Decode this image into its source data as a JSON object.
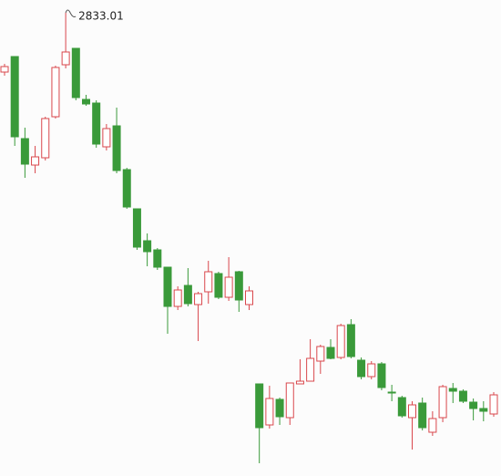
{
  "chart_data": {
    "type": "candlestick",
    "up_color": "#d9474c",
    "down_color": "#3a9a3a",
    "open": [
      2768,
      2785,
      2695,
      2666,
      2674,
      2719,
      2776,
      2794,
      2738,
      2734,
      2686,
      2709,
      2661,
      2618,
      2583,
      2573,
      2554,
      2511,
      2534,
      2513,
      2527,
      2547,
      2521,
      2549,
      2513,
      2426,
      2381,
      2409,
      2389,
      2426,
      2429,
      2451,
      2466,
      2455,
      2491,
      2452,
      2434,
      2448,
      2417,
      2411,
      2389,
      2405,
      2373,
      2389,
      2421,
      2418,
      2406,
      2399,
      2393
    ],
    "high": [
      2777,
      2785,
      2707,
      2687,
      2719,
      2775,
      2833.01,
      2794,
      2743,
      2737,
      2711,
      2729,
      2663,
      2618,
      2591,
      2575,
      2554,
      2533,
      2553,
      2527,
      2561,
      2549,
      2565,
      2550,
      2533,
      2426,
      2424,
      2411,
      2427,
      2453,
      2475,
      2469,
      2475,
      2492,
      2497,
      2455,
      2451,
      2450,
      2425,
      2413,
      2407,
      2411,
      2396,
      2425,
      2427,
      2420,
      2410,
      2407,
      2417
    ],
    "low": [
      2764,
      2687,
      2652,
      2657,
      2671,
      2717,
      2772,
      2737,
      2731,
      2685,
      2682,
      2657,
      2618,
      2573,
      2555,
      2551,
      2481,
      2507,
      2511,
      2473,
      2514,
      2519,
      2517,
      2505,
      2507,
      2339,
      2377,
      2381,
      2381,
      2426,
      2429,
      2437,
      2453,
      2453,
      2454,
      2431,
      2431,
      2419,
      2407,
      2389,
      2354,
      2375,
      2369,
      2384,
      2405,
      2405,
      2386,
      2385,
      2390
    ],
    "close": [
      2774,
      2697,
      2667,
      2675,
      2717,
      2773,
      2790,
      2740,
      2733,
      2689,
      2706,
      2660,
      2620,
      2576,
      2571,
      2554,
      2511,
      2529,
      2514,
      2525,
      2549,
      2521,
      2543,
      2518,
      2528,
      2378,
      2410,
      2390,
      2427,
      2429,
      2454,
      2467,
      2454,
      2490,
      2456,
      2434,
      2448,
      2422,
      2416,
      2391,
      2403,
      2378,
      2388,
      2423,
      2418,
      2407,
      2399,
      2396,
      2414
    ]
  }
}
